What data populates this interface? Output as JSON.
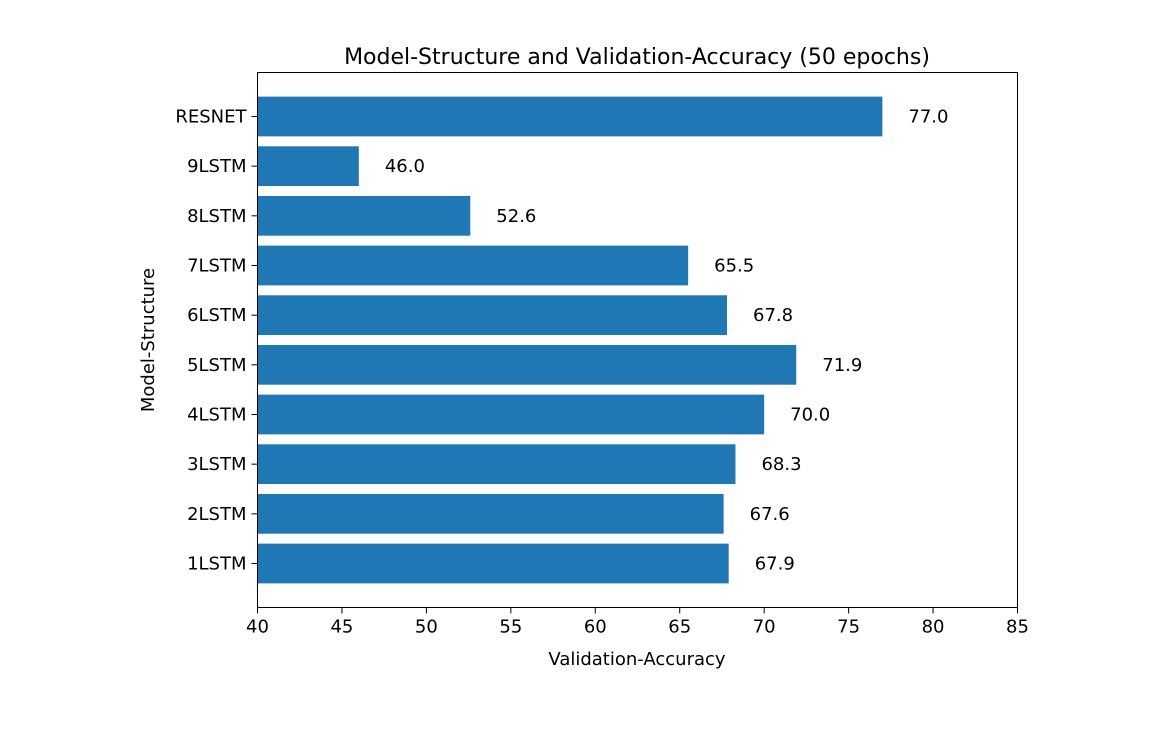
{
  "chart_data": {
    "type": "bar",
    "orientation": "horizontal",
    "title": "Model-Structure and Validation-Accuracy (50 epochs)",
    "xlabel": "Validation-Accuracy",
    "ylabel": "Model-Structure",
    "categories": [
      "1LSTM",
      "2LSTM",
      "3LSTM",
      "4LSTM",
      "5LSTM",
      "6LSTM",
      "7LSTM",
      "8LSTM",
      "9LSTM",
      "RESNET"
    ],
    "values": [
      67.9,
      67.6,
      68.3,
      70.0,
      71.9,
      67.8,
      65.5,
      52.6,
      46.0,
      77.0
    ],
    "data_labels": [
      "67.9",
      "67.6",
      "68.3",
      "70.0",
      "71.9",
      "67.8",
      "65.5",
      "52.6",
      "46.0",
      "77.0"
    ],
    "xlim": [
      40,
      85
    ],
    "xticks": [
      40,
      45,
      50,
      55,
      60,
      65,
      70,
      75,
      80,
      85
    ],
    "xtick_labels": [
      "40",
      "45",
      "50",
      "55",
      "60",
      "65",
      "70",
      "75",
      "80",
      "85"
    ],
    "grid": false,
    "bar_color": "#1f77b4"
  }
}
